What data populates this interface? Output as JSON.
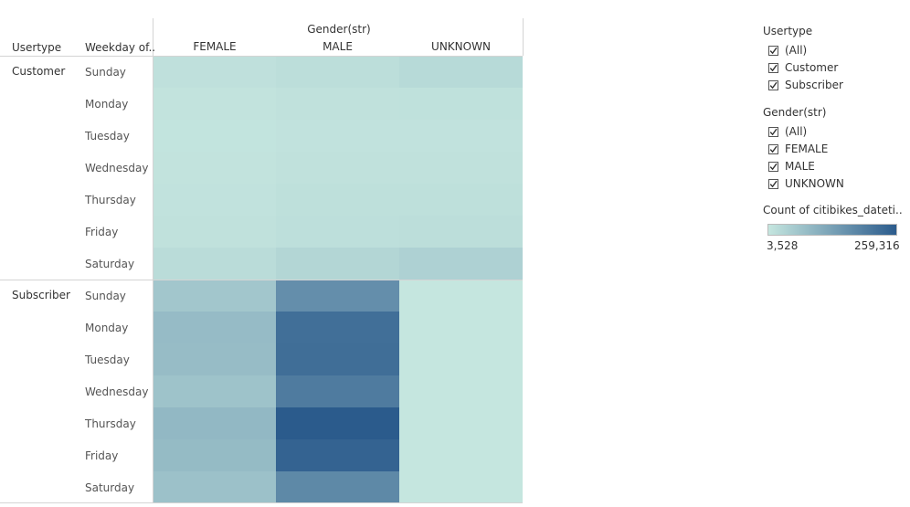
{
  "chart_data": {
    "type": "heatmap",
    "column_dimension": "Gender(str)",
    "columns": [
      "FEMALE",
      "MALE",
      "UNKNOWN"
    ],
    "row_dimensions": [
      "Usertype",
      "Weekday of.."
    ],
    "row_groups": [
      {
        "label": "Customer",
        "rows": [
          {
            "day": "Sunday",
            "values": [
              14000,
              18000,
              26000
            ]
          },
          {
            "day": "Monday",
            "values": [
              9000,
              12000,
              13000
            ]
          },
          {
            "day": "Tuesday",
            "values": [
              8000,
              10000,
              11000
            ]
          },
          {
            "day": "Wednesday",
            "values": [
              9000,
              12000,
              12000
            ]
          },
          {
            "day": "Thursday",
            "values": [
              11000,
              15000,
              15000
            ]
          },
          {
            "day": "Friday",
            "values": [
              12000,
              17000,
              18000
            ]
          },
          {
            "day": "Saturday",
            "values": [
              22000,
              33000,
              42000
            ]
          }
        ]
      },
      {
        "label": "Subscriber",
        "rows": [
          {
            "day": "Sunday",
            "values": [
              62000,
              165000,
              4000
            ]
          },
          {
            "day": "Monday",
            "values": [
              82000,
              222000,
              3600
            ]
          },
          {
            "day": "Tuesday",
            "values": [
              80000,
              225000,
              3528
            ]
          },
          {
            "day": "Wednesday",
            "values": [
              68000,
              200000,
              3600
            ]
          },
          {
            "day": "Thursday",
            "values": [
              88000,
              259316,
              3700
            ]
          },
          {
            "day": "Friday",
            "values": [
              83000,
              245000,
              3700
            ]
          },
          {
            "day": "Saturday",
            "values": [
              72000,
              175000,
              3800
            ]
          }
        ]
      }
    ],
    "color_range": [
      3528,
      259316
    ],
    "color_scale": [
      "#c5e6df",
      "#2b5b8c"
    ],
    "legend_placement": "right"
  },
  "filters": [
    {
      "title": "Usertype",
      "items": [
        "(All)",
        "Customer",
        "Subscriber"
      ],
      "checked": [
        true,
        true,
        true
      ]
    },
    {
      "title": "Gender(str)",
      "items": [
        "(All)",
        "FEMALE",
        "MALE",
        "UNKNOWN"
      ],
      "checked": [
        true,
        true,
        true,
        true
      ]
    }
  ],
  "legend": {
    "title": "Count of citibikes_dateti..",
    "min_label": "3,528",
    "max_label": "259,316"
  }
}
